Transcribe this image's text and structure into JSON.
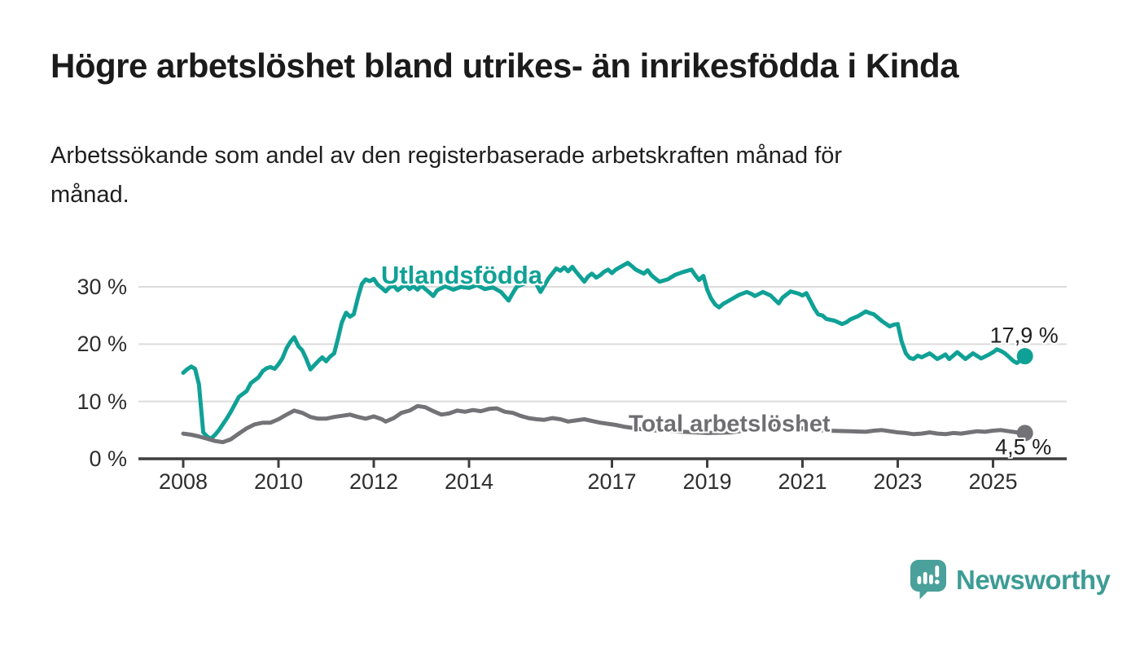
{
  "title": "Högre arbetslöshet bland utrikes- än inrikesfödda i Kinda",
  "subtitle_line1": "Arbetssökande som andel av den registerbaserade arbetskraften månad för",
  "subtitle_line2": "månad.",
  "branding": {
    "logo_text": "Newsworthy"
  },
  "colors": {
    "foreign_born_line": "#10a196",
    "total_line": "#737377",
    "total_label": "#6f6f73",
    "grid": "#dbdbdb",
    "axis": "#3f3f3f",
    "tick_text": "#2e2e2e",
    "title_text": "#1b1b1b",
    "logo_teal": "#4aa09a"
  },
  "chart_data": {
    "type": "line",
    "title": "Högre arbetslöshet bland utrikes- än inrikesfödda i Kinda",
    "subtitle": "Arbetssökande som andel av den registerbaserade arbetskraften månad för månad.",
    "unit": "%",
    "grid": true,
    "x_axis": {
      "ticks": [
        2008,
        2010,
        2012,
        2014,
        2017,
        2019,
        2021,
        2023,
        2025
      ],
      "range": [
        2007.1,
        2026.5
      ]
    },
    "y_axis": {
      "tick_values": [
        0,
        10,
        20,
        30
      ],
      "tick_labels": [
        "0 %",
        "10 %",
        "20 %",
        "30 %"
      ],
      "range": [
        0,
        34.5
      ]
    },
    "series": [
      {
        "id": "utlandsfodda",
        "name": "Utlandsfödda",
        "color": "#10a196",
        "end_label": "17,9 %",
        "end_value": 17.9,
        "points": [
          [
            2008.0,
            15.0
          ],
          [
            2008.08,
            15.6
          ],
          [
            2008.17,
            16.1
          ],
          [
            2008.25,
            15.7
          ],
          [
            2008.33,
            13.0
          ],
          [
            2008.42,
            4.6
          ],
          [
            2008.5,
            3.9
          ],
          [
            2008.58,
            3.5
          ],
          [
            2008.67,
            4.2
          ],
          [
            2008.75,
            5.0
          ],
          [
            2008.83,
            6.0
          ],
          [
            2008.92,
            7.1
          ],
          [
            2009.0,
            8.2
          ],
          [
            2009.17,
            10.8
          ],
          [
            2009.33,
            11.8
          ],
          [
            2009.42,
            13.2
          ],
          [
            2009.5,
            13.7
          ],
          [
            2009.58,
            14.2
          ],
          [
            2009.67,
            15.3
          ],
          [
            2009.75,
            15.8
          ],
          [
            2009.83,
            16.0
          ],
          [
            2009.92,
            15.7
          ],
          [
            2010.0,
            16.5
          ],
          [
            2010.08,
            17.5
          ],
          [
            2010.17,
            19.3
          ],
          [
            2010.25,
            20.4
          ],
          [
            2010.33,
            21.2
          ],
          [
            2010.42,
            19.6
          ],
          [
            2010.5,
            18.9
          ],
          [
            2010.58,
            17.5
          ],
          [
            2010.67,
            15.6
          ],
          [
            2010.75,
            16.3
          ],
          [
            2010.83,
            17.0
          ],
          [
            2010.92,
            17.7
          ],
          [
            2011.0,
            17.0
          ],
          [
            2011.08,
            17.8
          ],
          [
            2011.17,
            18.4
          ],
          [
            2011.25,
            21.0
          ],
          [
            2011.33,
            23.8
          ],
          [
            2011.42,
            25.5
          ],
          [
            2011.5,
            24.8
          ],
          [
            2011.58,
            25.2
          ],
          [
            2011.67,
            28.2
          ],
          [
            2011.75,
            30.5
          ],
          [
            2011.83,
            31.3
          ],
          [
            2011.92,
            31.0
          ],
          [
            2012.0,
            31.4
          ],
          [
            2012.08,
            30.4
          ],
          [
            2012.17,
            29.8
          ],
          [
            2012.25,
            29.2
          ],
          [
            2012.33,
            29.9
          ],
          [
            2012.42,
            30.2
          ],
          [
            2012.5,
            29.4
          ],
          [
            2012.58,
            29.9
          ],
          [
            2012.67,
            30.3
          ],
          [
            2012.75,
            29.6
          ],
          [
            2012.83,
            30.1
          ],
          [
            2012.92,
            29.5
          ],
          [
            2013.0,
            30.2
          ],
          [
            2013.17,
            29.0
          ],
          [
            2013.25,
            28.4
          ],
          [
            2013.33,
            29.4
          ],
          [
            2013.5,
            30.1
          ],
          [
            2013.67,
            29.5
          ],
          [
            2013.83,
            30.0
          ],
          [
            2014.0,
            29.8
          ],
          [
            2014.17,
            30.3
          ],
          [
            2014.33,
            29.6
          ],
          [
            2014.5,
            29.9
          ],
          [
            2014.67,
            29.1
          ],
          [
            2014.83,
            27.6
          ],
          [
            2014.92,
            28.9
          ],
          [
            2015.0,
            30.0
          ],
          [
            2015.17,
            30.6
          ],
          [
            2015.33,
            31.2
          ],
          [
            2015.42,
            30.4
          ],
          [
            2015.5,
            29.1
          ],
          [
            2015.67,
            31.5
          ],
          [
            2015.83,
            33.2
          ],
          [
            2015.92,
            32.8
          ],
          [
            2016.0,
            33.4
          ],
          [
            2016.08,
            32.7
          ],
          [
            2016.17,
            33.5
          ],
          [
            2016.25,
            32.6
          ],
          [
            2016.33,
            31.8
          ],
          [
            2016.42,
            30.9
          ],
          [
            2016.5,
            31.8
          ],
          [
            2016.58,
            32.3
          ],
          [
            2016.67,
            31.6
          ],
          [
            2016.75,
            32.0
          ],
          [
            2016.83,
            32.6
          ],
          [
            2016.92,
            33.0
          ],
          [
            2017.0,
            32.4
          ],
          [
            2017.08,
            33.0
          ],
          [
            2017.25,
            33.8
          ],
          [
            2017.33,
            34.2
          ],
          [
            2017.42,
            33.6
          ],
          [
            2017.5,
            33.0
          ],
          [
            2017.67,
            32.3
          ],
          [
            2017.75,
            32.9
          ],
          [
            2017.83,
            32.0
          ],
          [
            2017.92,
            31.4
          ],
          [
            2018.0,
            30.9
          ],
          [
            2018.17,
            31.3
          ],
          [
            2018.33,
            32.1
          ],
          [
            2018.5,
            32.6
          ],
          [
            2018.67,
            33.0
          ],
          [
            2018.75,
            32.0
          ],
          [
            2018.83,
            31.2
          ],
          [
            2018.92,
            31.9
          ],
          [
            2019.0,
            29.5
          ],
          [
            2019.08,
            28.0
          ],
          [
            2019.17,
            26.9
          ],
          [
            2019.25,
            26.4
          ],
          [
            2019.33,
            27.0
          ],
          [
            2019.5,
            27.8
          ],
          [
            2019.67,
            28.6
          ],
          [
            2019.83,
            29.1
          ],
          [
            2019.92,
            28.8
          ],
          [
            2020.0,
            28.4
          ],
          [
            2020.17,
            29.1
          ],
          [
            2020.33,
            28.5
          ],
          [
            2020.5,
            27.1
          ],
          [
            2020.58,
            28.1
          ],
          [
            2020.75,
            29.2
          ],
          [
            2020.92,
            28.8
          ],
          [
            2021.0,
            28.5
          ],
          [
            2021.08,
            28.9
          ],
          [
            2021.17,
            27.5
          ],
          [
            2021.25,
            26.2
          ],
          [
            2021.33,
            25.2
          ],
          [
            2021.42,
            25.0
          ],
          [
            2021.5,
            24.4
          ],
          [
            2021.67,
            24.1
          ],
          [
            2021.83,
            23.5
          ],
          [
            2021.92,
            23.8
          ],
          [
            2022.0,
            24.3
          ],
          [
            2022.17,
            24.9
          ],
          [
            2022.33,
            25.7
          ],
          [
            2022.42,
            25.4
          ],
          [
            2022.5,
            25.2
          ],
          [
            2022.67,
            24.0
          ],
          [
            2022.83,
            23.1
          ],
          [
            2022.92,
            23.4
          ],
          [
            2023.0,
            23.5
          ],
          [
            2023.08,
            20.5
          ],
          [
            2023.17,
            18.4
          ],
          [
            2023.25,
            17.6
          ],
          [
            2023.33,
            17.4
          ],
          [
            2023.42,
            18.0
          ],
          [
            2023.5,
            17.7
          ],
          [
            2023.67,
            18.4
          ],
          [
            2023.83,
            17.4
          ],
          [
            2023.92,
            17.8
          ],
          [
            2024.0,
            18.2
          ],
          [
            2024.08,
            17.4
          ],
          [
            2024.25,
            18.6
          ],
          [
            2024.42,
            17.4
          ],
          [
            2024.58,
            18.4
          ],
          [
            2024.75,
            17.5
          ],
          [
            2024.92,
            18.2
          ],
          [
            2025.0,
            18.6
          ],
          [
            2025.08,
            19.1
          ],
          [
            2025.17,
            18.8
          ],
          [
            2025.25,
            18.4
          ],
          [
            2025.33,
            17.8
          ],
          [
            2025.42,
            17.1
          ],
          [
            2025.5,
            16.7
          ],
          [
            2025.58,
            17.2
          ],
          [
            2025.67,
            17.9
          ]
        ]
      },
      {
        "id": "total-arbetsloshet",
        "name": "Total arbetslöshet",
        "color": "#737377",
        "end_label": "4,5 %",
        "end_value": 4.5,
        "points": [
          [
            2008.0,
            4.4
          ],
          [
            2008.17,
            4.2
          ],
          [
            2008.33,
            3.9
          ],
          [
            2008.5,
            3.5
          ],
          [
            2008.67,
            3.1
          ],
          [
            2008.83,
            2.9
          ],
          [
            2009.0,
            3.4
          ],
          [
            2009.17,
            4.4
          ],
          [
            2009.33,
            5.3
          ],
          [
            2009.5,
            6.0
          ],
          [
            2009.67,
            6.3
          ],
          [
            2009.83,
            6.3
          ],
          [
            2010.0,
            6.9
          ],
          [
            2010.17,
            7.7
          ],
          [
            2010.33,
            8.4
          ],
          [
            2010.5,
            8.0
          ],
          [
            2010.67,
            7.3
          ],
          [
            2010.83,
            7.0
          ],
          [
            2011.0,
            7.0
          ],
          [
            2011.17,
            7.3
          ],
          [
            2011.33,
            7.5
          ],
          [
            2011.5,
            7.7
          ],
          [
            2011.67,
            7.3
          ],
          [
            2011.83,
            7.0
          ],
          [
            2012.0,
            7.4
          ],
          [
            2012.17,
            6.9
          ],
          [
            2012.25,
            6.5
          ],
          [
            2012.42,
            7.1
          ],
          [
            2012.58,
            8.0
          ],
          [
            2012.75,
            8.4
          ],
          [
            2012.92,
            9.2
          ],
          [
            2013.08,
            9.0
          ],
          [
            2013.25,
            8.3
          ],
          [
            2013.42,
            7.7
          ],
          [
            2013.58,
            7.9
          ],
          [
            2013.75,
            8.4
          ],
          [
            2013.92,
            8.2
          ],
          [
            2014.08,
            8.5
          ],
          [
            2014.25,
            8.3
          ],
          [
            2014.42,
            8.7
          ],
          [
            2014.58,
            8.8
          ],
          [
            2014.75,
            8.2
          ],
          [
            2014.92,
            8.0
          ],
          [
            2015.08,
            7.5
          ],
          [
            2015.25,
            7.1
          ],
          [
            2015.42,
            6.9
          ],
          [
            2015.58,
            6.8
          ],
          [
            2015.75,
            7.1
          ],
          [
            2015.92,
            6.9
          ],
          [
            2016.08,
            6.5
          ],
          [
            2016.25,
            6.7
          ],
          [
            2016.42,
            6.9
          ],
          [
            2016.58,
            6.6
          ],
          [
            2016.75,
            6.3
          ],
          [
            2016.92,
            6.1
          ],
          [
            2017.08,
            5.9
          ],
          [
            2017.25,
            5.6
          ],
          [
            2017.42,
            5.4
          ],
          [
            2017.58,
            5.2
          ],
          [
            2017.75,
            5.0
          ],
          [
            2018.0,
            4.9
          ],
          [
            2018.5,
            4.7
          ],
          [
            2019.0,
            4.5
          ],
          [
            2019.5,
            4.6
          ],
          [
            2020.0,
            5.2
          ],
          [
            2020.33,
            5.8
          ],
          [
            2020.67,
            5.6
          ],
          [
            2021.0,
            5.3
          ],
          [
            2021.5,
            4.9
          ],
          [
            2022.0,
            4.8
          ],
          [
            2022.33,
            4.7
          ],
          [
            2022.5,
            4.9
          ],
          [
            2022.67,
            5.0
          ],
          [
            2022.83,
            4.8
          ],
          [
            2023.0,
            4.6
          ],
          [
            2023.17,
            4.5
          ],
          [
            2023.33,
            4.3
          ],
          [
            2023.5,
            4.4
          ],
          [
            2023.67,
            4.6
          ],
          [
            2023.83,
            4.4
          ],
          [
            2024.0,
            4.3
          ],
          [
            2024.17,
            4.5
          ],
          [
            2024.33,
            4.4
          ],
          [
            2024.5,
            4.6
          ],
          [
            2024.67,
            4.8
          ],
          [
            2024.83,
            4.7
          ],
          [
            2025.0,
            4.9
          ],
          [
            2025.17,
            5.0
          ],
          [
            2025.33,
            4.8
          ],
          [
            2025.5,
            4.6
          ],
          [
            2025.67,
            4.5
          ]
        ]
      }
    ]
  }
}
